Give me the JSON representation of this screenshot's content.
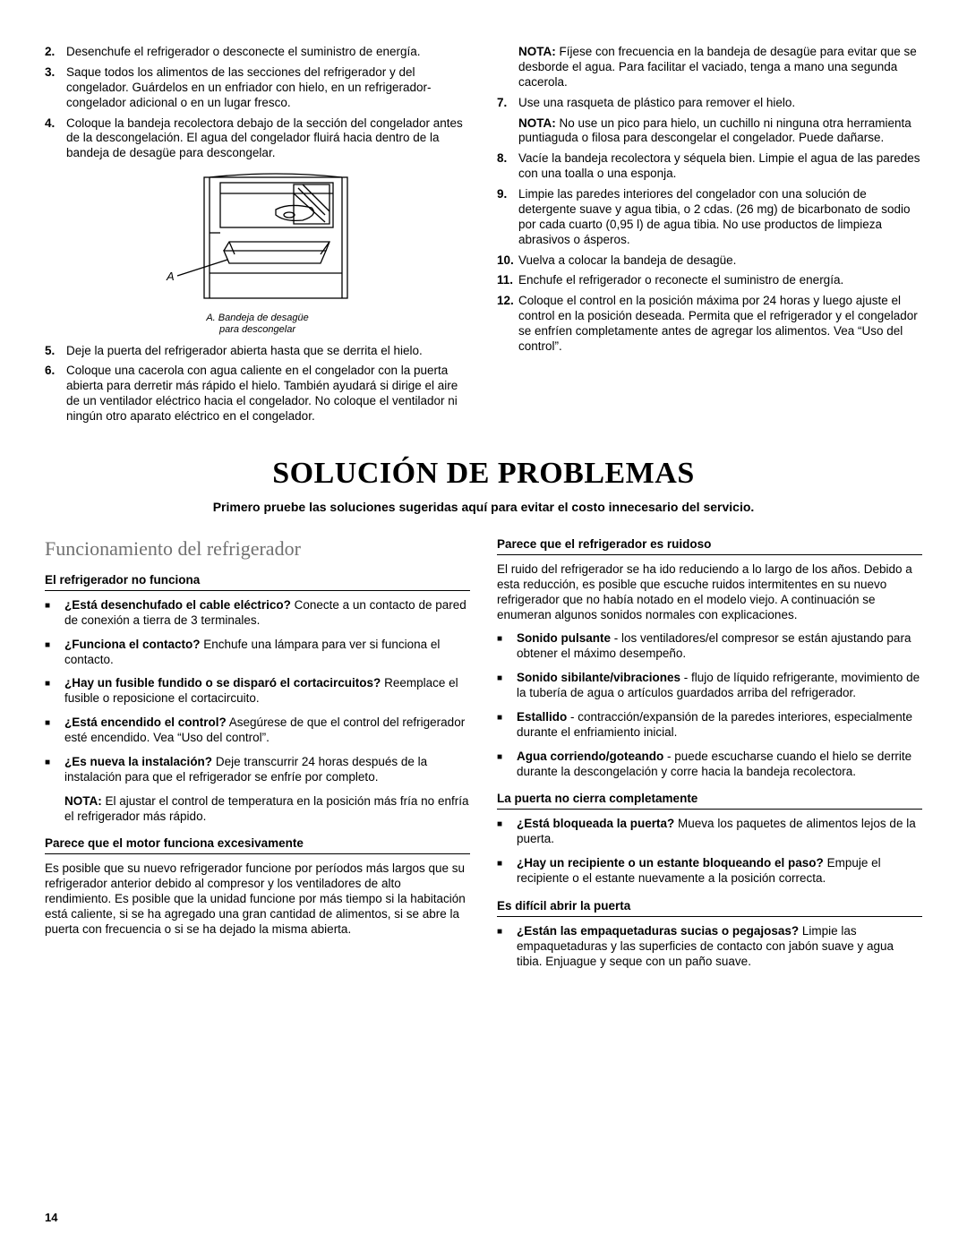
{
  "top": {
    "left": {
      "items": [
        {
          "n": "2.",
          "t": "Desenchufe el refrigerador o desconecte el suministro de energía."
        },
        {
          "n": "3.",
          "t": "Saque todos los alimentos de las secciones del refrigerador y del congelador. Guárdelos en un enfriador con hielo, en un refrigerador-congelador adicional o en un lugar fresco."
        },
        {
          "n": "4.",
          "t": "Coloque la bandeja recolectora debajo de la sección del congelador antes de la descongelación. El agua del congelador fluirá hacia dentro de la bandeja de desagüe para descongelar."
        }
      ],
      "caption1": "A. Bandeja de desagüe",
      "caption2": "para descongelar",
      "items2": [
        {
          "n": "5.",
          "t": "Deje la puerta del refrigerador abierta hasta que se derrita el hielo."
        },
        {
          "n": "6.",
          "t": "Coloque una cacerola con agua caliente en el congelador con la puerta abierta para derretir más rápido el hielo. También ayudará si dirige el aire de un ventilador eléctrico hacia el congelador. No coloque el ventilador ni ningún otro aparato eléctrico en el congelador."
        }
      ]
    },
    "right": {
      "note1_label": "NOTA:",
      "note1_text": " Fíjese con frecuencia en la bandeja de desagüe para evitar que se desborde el agua. Para facilitar el vaciado, tenga a mano una segunda cacerola.",
      "items": [
        {
          "n": "7.",
          "t": "Use una rasqueta de plástico para remover el hielo."
        }
      ],
      "note2_label": "NOTA:",
      "note2_text": " No use un pico para hielo, un cuchillo ni ninguna otra herramienta puntiaguda o filosa para descongelar el congelador. Puede dañarse.",
      "items2": [
        {
          "n": "8.",
          "t": "Vacíe la bandeja recolectora y séquela bien. Limpie el agua de las paredes con una toalla o una esponja."
        },
        {
          "n": "9.",
          "t": "Limpie las paredes interiores del congelador con una solución de detergente suave y agua tibia, o 2 cdas. (26 mg) de bicarbonato de sodio por cada cuarto (0,95 l) de agua tibia. No use productos de limpieza abrasivos o ásperos."
        },
        {
          "n": "10.",
          "t": "Vuelva a colocar la bandeja de desagüe."
        },
        {
          "n": "11.",
          "t": "Enchufe el refrigerador o reconecte el suministro de energía."
        },
        {
          "n": "12.",
          "t": "Coloque el control en la posición máxima por 24 horas y luego ajuste el control en la posición deseada. Permita que el refrigerador y el congelador se enfríen completamente antes de agregar los alimentos. Vea “Uso del control”."
        }
      ]
    }
  },
  "main_title": "SOLUCIÓN DE PROBLEMAS",
  "main_sub": "Primero pruebe las soluciones sugeridas aquí para evitar el costo innecesario del servicio.",
  "trouble": {
    "left": {
      "section_title": "Funcionamiento del refrigerador",
      "h1": "El refrigerador no funciona",
      "b1": [
        {
          "bold": "¿Está desenchufado el cable eléctrico?",
          "rest": " Conecte a un contacto de pared de conexión a tierra de 3 terminales."
        },
        {
          "bold": "¿Funciona el contacto?",
          "rest": " Enchufe una lámpara para ver si funciona el contacto."
        },
        {
          "bold": "¿Hay un fusible fundido o se disparó el cortacircuitos?",
          "rest": " Reemplace el fusible o reposicione el cortacircuito."
        },
        {
          "bold": "¿Está encendido el control?",
          "rest": " Asegúrese de que el control del refrigerador esté encendido. Vea “Uso del control”."
        },
        {
          "bold": "¿Es nueva la instalación?",
          "rest": " Deje transcurrir 24 horas después de la instalación para que el refrigerador se enfríe por completo."
        }
      ],
      "note_label": "NOTA:",
      "note_text": " El ajustar el control de temperatura en la posición más fría no enfría el refrigerador más rápido.",
      "h2": "Parece que el motor funciona excesivamente",
      "p2": "Es posible que su nuevo refrigerador funcione por períodos más largos que su refrigerador anterior debido al compresor y los ventiladores de alto rendimiento. Es posible que la unidad funcione por más tiempo si la habitación está caliente, si se ha agregado una gran cantidad de alimentos, si se abre la puerta con frecuencia o si se ha dejado la misma abierta."
    },
    "right": {
      "h1": "Parece que el refrigerador es ruidoso",
      "p1": "El ruido del refrigerador se ha ido reduciendo a lo largo de los años. Debido a esta reducción, es posible que escuche ruidos intermitentes en su nuevo refrigerador que no había notado en el modelo viejo. A continuación se enumeran algunos sonidos normales con explicaciones.",
      "b1": [
        {
          "bold": "Sonido pulsante",
          "rest": " - los ventiladores/el compresor se están ajustando para obtener el máximo desempeño."
        },
        {
          "bold": "Sonido sibilante/vibraciones",
          "rest": " - flujo de líquido refrigerante, movimiento de la tubería de agua o artículos guardados arriba del refrigerador."
        },
        {
          "bold": "Estallido",
          "rest": " - contracción/expansión de la paredes interiores, especialmente durante el enfriamiento inicial."
        },
        {
          "bold": "Agua corriendo/goteando",
          "rest": " - puede escucharse cuando el hielo se derrite durante la descongelación y corre hacia la bandeja recolectora."
        }
      ],
      "h2": "La puerta no cierra completamente",
      "b2": [
        {
          "bold": "¿Está bloqueada la puerta?",
          "rest": " Mueva los paquetes de alimentos lejos de la puerta."
        },
        {
          "bold": "¿Hay un recipiente o un estante bloqueando el paso?",
          "rest": " Empuje el recipiente o el estante nuevamente a la posición correcta."
        }
      ],
      "h3": "Es difícil abrir la puerta",
      "b3": [
        {
          "bold": "¿Están las empaquetaduras sucias o pegajosas?",
          "rest": " Limpie las empaquetaduras y las superficies de contacto con jabón suave y agua tibia. Enjuague y seque con un paño suave."
        }
      ]
    }
  },
  "page_num": "14",
  "diagram_label": "A"
}
